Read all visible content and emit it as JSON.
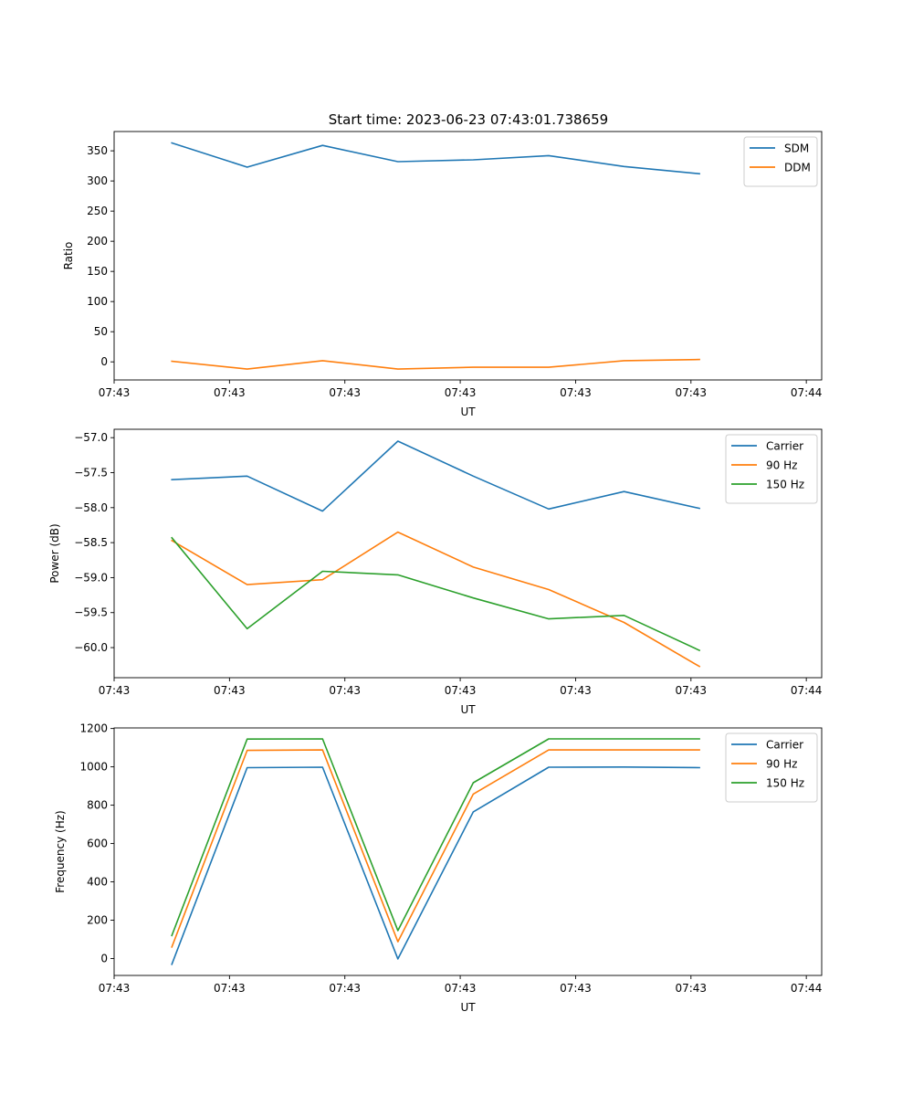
{
  "title": "Start time: 2023-06-23 07:43:01.738659",
  "colors": {
    "blue": "#1f77b4",
    "orange": "#ff7f0e",
    "green": "#2ca02c"
  },
  "chart_data": [
    {
      "type": "line",
      "xlabel": "UT",
      "ylabel": "Ratio",
      "xlim": [
        0,
        9.2
      ],
      "ylim": [
        -30,
        382
      ],
      "x_ticks": [
        0,
        1.5,
        3,
        4.5,
        6,
        7.5,
        9
      ],
      "x_tick_labels": [
        "07:43",
        "07:43",
        "07:43",
        "07:43",
        "07:43",
        "07:43",
        "07:44"
      ],
      "y_ticks": [
        0,
        50,
        100,
        150,
        200,
        250,
        300,
        350
      ],
      "y_tick_labels": [
        "0",
        "50",
        "100",
        "150",
        "200",
        "250",
        "300",
        "350"
      ],
      "legend": "top-right",
      "x": [
        0.75,
        1.73,
        2.71,
        3.69,
        4.67,
        5.65,
        6.63,
        7.61
      ],
      "series": [
        {
          "name": "SDM",
          "color": "#1f77b4",
          "values": [
            363,
            323,
            359,
            332,
            335,
            342,
            324,
            312
          ]
        },
        {
          "name": "DDM",
          "color": "#ff7f0e",
          "values": [
            1,
            -12,
            2,
            -12,
            -9,
            -9,
            2,
            4
          ]
        }
      ]
    },
    {
      "type": "line",
      "xlabel": "UT",
      "ylabel": "Power (dB)",
      "xlim": [
        0,
        9.2
      ],
      "ylim": [
        -60.43,
        -56.88
      ],
      "x_ticks": [
        0,
        1.5,
        3,
        4.5,
        6,
        7.5,
        9
      ],
      "x_tick_labels": [
        "07:43",
        "07:43",
        "07:43",
        "07:43",
        "07:43",
        "07:43",
        "07:44"
      ],
      "y_ticks": [
        -57.0,
        -57.5,
        -58.0,
        -58.5,
        -59.0,
        -59.5,
        -60.0
      ],
      "y_tick_labels": [
        "−57.0",
        "−57.5",
        "−58.0",
        "−58.5",
        "−59.0",
        "−59.5",
        "−60.0"
      ],
      "legend": "top-right",
      "x": [
        0.75,
        1.73,
        2.71,
        3.69,
        4.67,
        5.65,
        6.63,
        7.61
      ],
      "series": [
        {
          "name": "Carrier",
          "color": "#1f77b4",
          "values": [
            -57.6,
            -57.55,
            -58.05,
            -57.05,
            -57.55,
            -58.02,
            -57.77,
            -58.01
          ]
        },
        {
          "name": "90 Hz",
          "color": "#ff7f0e",
          "values": [
            -58.47,
            -59.1,
            -59.03,
            -58.35,
            -58.85,
            -59.17,
            -59.64,
            -60.27
          ]
        },
        {
          "name": "150 Hz",
          "color": "#2ca02c",
          "values": [
            -58.43,
            -59.73,
            -58.91,
            -58.96,
            -59.29,
            -59.59,
            -59.54,
            -60.04
          ]
        }
      ]
    },
    {
      "type": "line",
      "xlabel": "UT",
      "ylabel": "Frequency (Hz)",
      "xlim": [
        0,
        9.2
      ],
      "ylim": [
        -88,
        1203
      ],
      "x_ticks": [
        0,
        1.5,
        3,
        4.5,
        6,
        7.5,
        9
      ],
      "x_tick_labels": [
        "07:43",
        "07:43",
        "07:43",
        "07:43",
        "07:43",
        "07:43",
        "07:44"
      ],
      "y_ticks": [
        0,
        200,
        400,
        600,
        800,
        1000,
        1200
      ],
      "y_tick_labels": [
        "0",
        "200",
        "400",
        "600",
        "800",
        "1000",
        "1200"
      ],
      "legend": "top-right",
      "x": [
        0.75,
        1.73,
        2.71,
        3.69,
        4.67,
        5.65,
        6.63,
        7.61
      ],
      "series": [
        {
          "name": "Carrier",
          "color": "#1f77b4",
          "values": [
            -30,
            996,
            998,
            -2,
            765,
            998,
            999,
            996
          ]
        },
        {
          "name": "90 Hz",
          "color": "#ff7f0e",
          "values": [
            60,
            1086,
            1088,
            88,
            858,
            1088,
            1088,
            1088
          ]
        },
        {
          "name": "150 Hz",
          "color": "#2ca02c",
          "values": [
            120,
            1145,
            1146,
            146,
            917,
            1146,
            1146,
            1146
          ]
        }
      ]
    }
  ]
}
